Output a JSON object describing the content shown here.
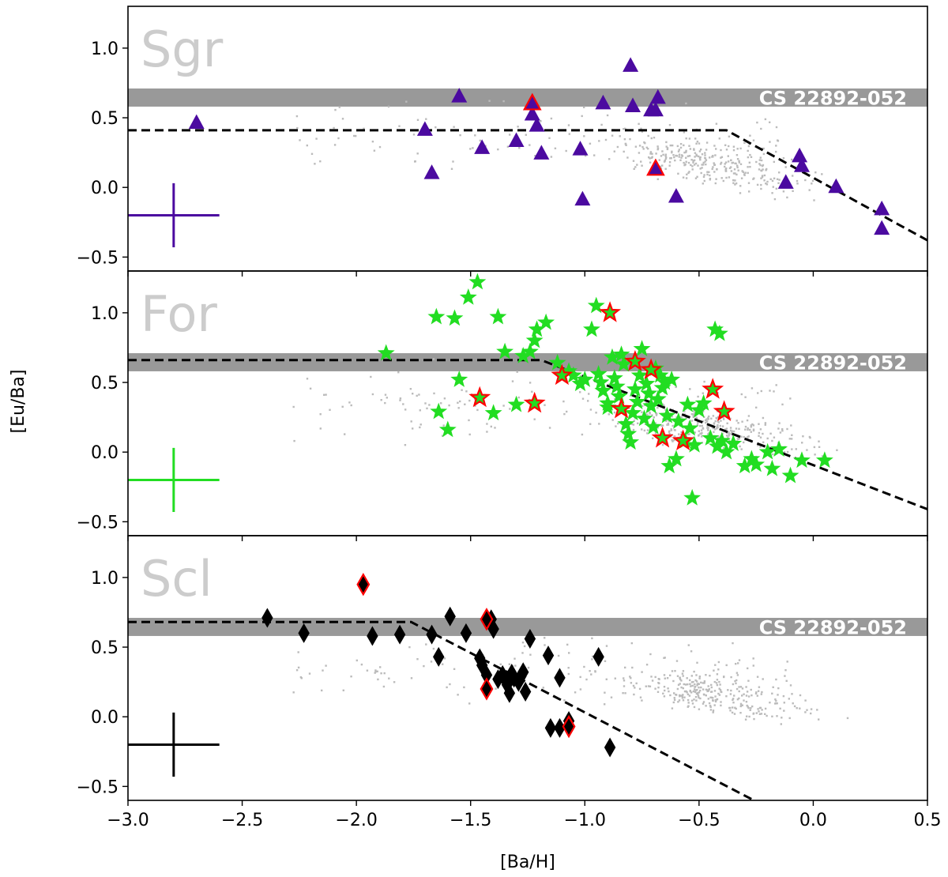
{
  "chart_data": {
    "type": "scatter",
    "xlabel": "[Ba/H]",
    "ylabel": "[Eu/Ba]",
    "xlim": [
      -3.0,
      0.5
    ],
    "ylim": [
      -0.6,
      1.3
    ],
    "x_ticks": [
      "−3.0",
      "−2.5",
      "−2.0",
      "−1.5",
      "−1.0",
      "−0.5",
      "0.0",
      "0.5"
    ],
    "x_tick_values": [
      -3.0,
      -2.5,
      -2.0,
      -1.5,
      -1.0,
      -0.5,
      0.0,
      0.5
    ],
    "y_ticks": [
      "−0.5",
      "0.0",
      "0.5",
      "1.0"
    ],
    "y_tick_values": [
      -0.5,
      0.0,
      0.5,
      1.0
    ],
    "reference_band": {
      "label": "CS 22892-052",
      "y_range": [
        0.58,
        0.71
      ],
      "x_range": [
        -3.0,
        0.5
      ]
    },
    "colors": {
      "band": "#999999",
      "background_points": "#bbbbbb",
      "highlight_edge": "#ff0000",
      "panel_name": "#cccccc"
    },
    "panels": [
      {
        "name": "Sgr",
        "marker": "triangle",
        "color": "#4b0aa0",
        "trend_line": [
          [
            -3.0,
            0.41
          ],
          [
            -0.38,
            0.41
          ],
          [
            0.5,
            -0.38
          ]
        ],
        "error_bar": {
          "x": -2.8,
          "y": -0.2,
          "dx": 0.2,
          "dy": 0.23
        },
        "points": [
          [
            -2.7,
            0.46
          ],
          [
            -1.7,
            0.41
          ],
          [
            -1.67,
            0.1
          ],
          [
            -1.55,
            0.65
          ],
          [
            -1.45,
            0.28
          ],
          [
            -1.3,
            0.33
          ],
          [
            -1.23,
            0.52
          ],
          [
            -1.21,
            0.44
          ],
          [
            -1.19,
            0.24
          ],
          [
            -1.02,
            0.27
          ],
          [
            -1.01,
            -0.09
          ],
          [
            -0.92,
            0.6
          ],
          [
            -0.8,
            0.87
          ],
          [
            -0.79,
            0.58
          ],
          [
            -0.71,
            0.55
          ],
          [
            -0.69,
            0.55
          ],
          [
            -0.68,
            0.64
          ],
          [
            -0.6,
            -0.07
          ],
          [
            -0.12,
            0.03
          ],
          [
            -0.06,
            0.22
          ],
          [
            -0.05,
            0.15
          ],
          [
            0.1,
            0.0
          ],
          [
            0.3,
            -0.16
          ],
          [
            0.3,
            -0.3
          ]
        ],
        "highlighted": [
          [
            -1.23,
            0.6
          ],
          [
            -0.69,
            0.13
          ]
        ]
      },
      {
        "name": "For",
        "marker": "star",
        "color": "#22dd22",
        "trend_line": [
          [
            -3.0,
            0.66
          ],
          [
            -1.19,
            0.66
          ],
          [
            0.5,
            -0.41
          ]
        ],
        "error_bar": {
          "x": -2.8,
          "y": -0.2,
          "dx": 0.2,
          "dy": 0.23
        },
        "points": [
          [
            -1.87,
            0.71
          ],
          [
            -1.65,
            0.97
          ],
          [
            -1.64,
            0.29
          ],
          [
            -1.6,
            0.16
          ],
          [
            -1.57,
            0.96
          ],
          [
            -1.55,
            0.52
          ],
          [
            -1.51,
            1.11
          ],
          [
            -1.47,
            1.22
          ],
          [
            -1.4,
            0.28
          ],
          [
            -1.38,
            0.97
          ],
          [
            -1.35,
            0.72
          ],
          [
            -1.3,
            0.34
          ],
          [
            -1.27,
            0.69
          ],
          [
            -1.24,
            0.72
          ],
          [
            -1.22,
            0.8
          ],
          [
            -1.21,
            0.88
          ],
          [
            -1.17,
            0.93
          ],
          [
            -1.12,
            0.64
          ],
          [
            -1.07,
            0.58
          ],
          [
            -1.05,
            0.55
          ],
          [
            -1.02,
            0.49
          ],
          [
            -1.0,
            0.52
          ],
          [
            -0.97,
            0.88
          ],
          [
            -0.95,
            1.05
          ],
          [
            -0.94,
            0.56
          ],
          [
            -0.93,
            0.5
          ],
          [
            -0.92,
            0.44
          ],
          [
            -0.9,
            0.35
          ],
          [
            -0.9,
            0.32
          ],
          [
            -0.88,
            0.68
          ],
          [
            -0.87,
            0.53
          ],
          [
            -0.86,
            0.47
          ],
          [
            -0.85,
            0.4
          ],
          [
            -0.84,
            0.7
          ],
          [
            -0.83,
            0.63
          ],
          [
            -0.82,
            0.2
          ],
          [
            -0.81,
            0.13
          ],
          [
            -0.8,
            0.07
          ],
          [
            -0.79,
            0.28
          ],
          [
            -0.78,
            0.45
          ],
          [
            -0.77,
            0.36
          ],
          [
            -0.76,
            0.55
          ],
          [
            -0.75,
            0.74
          ],
          [
            -0.74,
            0.24
          ],
          [
            -0.73,
            0.49
          ],
          [
            -0.72,
            0.42
          ],
          [
            -0.71,
            0.33
          ],
          [
            -0.7,
            0.18
          ],
          [
            -0.69,
            0.6
          ],
          [
            -0.68,
            0.38
          ],
          [
            -0.67,
            0.55
          ],
          [
            -0.66,
            0.46
          ],
          [
            -0.65,
            0.5
          ],
          [
            -0.64,
            0.26
          ],
          [
            -0.63,
            -0.1
          ],
          [
            -0.62,
            0.52
          ],
          [
            -0.6,
            -0.05
          ],
          [
            -0.59,
            0.22
          ],
          [
            -0.56,
            0.08
          ],
          [
            -0.55,
            0.34
          ],
          [
            -0.54,
            0.17
          ],
          [
            -0.53,
            -0.33
          ],
          [
            -0.52,
            0.05
          ],
          [
            -0.5,
            0.3
          ],
          [
            -0.48,
            0.35
          ],
          [
            -0.45,
            0.1
          ],
          [
            -0.43,
            0.88
          ],
          [
            -0.42,
            0.04
          ],
          [
            -0.41,
            0.85
          ],
          [
            -0.4,
            0.08
          ],
          [
            -0.38,
            0.0
          ],
          [
            -0.35,
            0.06
          ],
          [
            -0.3,
            -0.1
          ],
          [
            -0.27,
            -0.05
          ],
          [
            -0.25,
            -0.09
          ],
          [
            -0.2,
            0.0
          ],
          [
            -0.18,
            -0.12
          ],
          [
            -0.15,
            0.02
          ],
          [
            -0.1,
            -0.17
          ],
          [
            -0.05,
            -0.06
          ],
          [
            0.05,
            -0.06
          ]
        ],
        "highlighted": [
          [
            -1.46,
            0.39
          ],
          [
            -1.22,
            0.35
          ],
          [
            -1.1,
            0.55
          ],
          [
            -0.89,
            1.0
          ],
          [
            -0.84,
            0.31
          ],
          [
            -0.78,
            0.65
          ],
          [
            -0.71,
            0.59
          ],
          [
            -0.66,
            0.1
          ],
          [
            -0.57,
            0.08
          ],
          [
            -0.44,
            0.45
          ],
          [
            -0.39,
            0.29
          ]
        ]
      },
      {
        "name": "Scl",
        "marker": "diamond",
        "color": "#000000",
        "trend_line": [
          [
            -3.0,
            0.68
          ],
          [
            -1.76,
            0.68
          ],
          [
            -0.26,
            -0.6
          ]
        ],
        "error_bar": {
          "x": -2.8,
          "y": -0.2,
          "dx": 0.2,
          "dy": 0.23
        },
        "points": [
          [
            -2.39,
            0.71
          ],
          [
            -2.23,
            0.6
          ],
          [
            -1.93,
            0.58
          ],
          [
            -1.81,
            0.59
          ],
          [
            -1.67,
            0.59
          ],
          [
            -1.64,
            0.43
          ],
          [
            -1.59,
            0.72
          ],
          [
            -1.52,
            0.6
          ],
          [
            -1.46,
            0.42
          ],
          [
            -1.45,
            0.37
          ],
          [
            -1.43,
            0.3
          ],
          [
            -1.41,
            0.7
          ],
          [
            -1.4,
            0.63
          ],
          [
            -1.38,
            0.27
          ],
          [
            -1.36,
            0.3
          ],
          [
            -1.34,
            0.23
          ],
          [
            -1.33,
            0.17
          ],
          [
            -1.32,
            0.31
          ],
          [
            -1.31,
            0.28
          ],
          [
            -1.29,
            0.25
          ],
          [
            -1.28,
            0.29
          ],
          [
            -1.27,
            0.32
          ],
          [
            -1.26,
            0.18
          ],
          [
            -1.24,
            0.56
          ],
          [
            -1.16,
            0.44
          ],
          [
            -1.15,
            -0.08
          ],
          [
            -1.11,
            0.28
          ],
          [
            -1.11,
            -0.08
          ],
          [
            -1.07,
            -0.03
          ],
          [
            -0.94,
            0.43
          ],
          [
            -0.89,
            -0.22
          ]
        ],
        "highlighted": [
          [
            -1.97,
            0.95
          ],
          [
            -1.43,
            0.7
          ],
          [
            -1.43,
            0.2
          ],
          [
            -1.07,
            -0.07
          ]
        ]
      }
    ]
  }
}
